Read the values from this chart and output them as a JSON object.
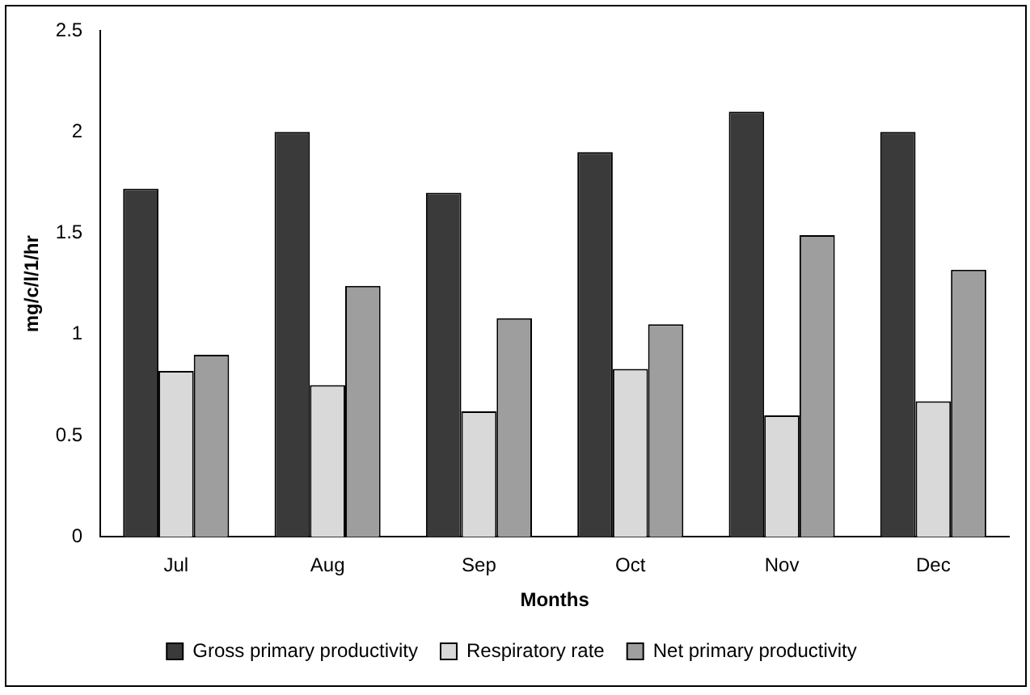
{
  "chart_data": {
    "type": "bar",
    "xlabel": "Months",
    "ylabel": "mg/c/l/1/hr",
    "categories": [
      "Jul",
      "Aug",
      "Sep",
      "Oct",
      "Nov",
      "Dec"
    ],
    "series": [
      {
        "name": "Gross primary productivity",
        "color": "#3a3a3a",
        "values": [
          1.72,
          2.0,
          1.7,
          1.9,
          2.1,
          2.0
        ]
      },
      {
        "name": "Respiratory rate",
        "color": "#d9d9d9",
        "values": [
          0.82,
          0.75,
          0.62,
          0.83,
          0.6,
          0.67
        ]
      },
      {
        "name": "Net primary productivity",
        "color": "#9e9e9e",
        "values": [
          0.9,
          1.24,
          1.08,
          1.05,
          1.49,
          1.32
        ]
      }
    ],
    "ylim": [
      0,
      2.5
    ],
    "yticks": [
      0,
      0.5,
      1,
      1.5,
      2,
      2.5
    ],
    "grid": false,
    "legend": "bottom"
  }
}
